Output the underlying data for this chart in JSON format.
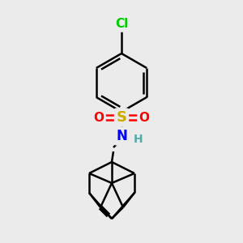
{
  "background_color": "#ebebeb",
  "atom_colors": {
    "C": "#000000",
    "Cl": "#00cc00",
    "S": "#ccaa00",
    "O": "#ff0000",
    "N": "#0000ff",
    "H": "#55aaaa"
  },
  "bond_color": "#000000",
  "bond_width": 1.8,
  "font_size": 11
}
